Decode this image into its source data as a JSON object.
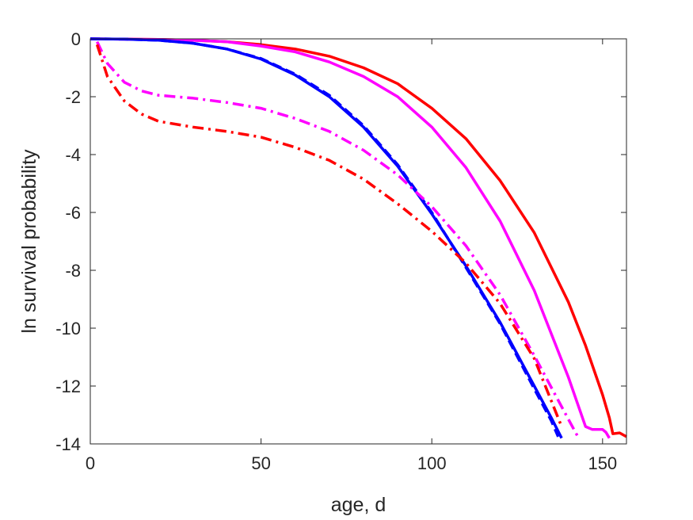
{
  "chart_data": {
    "type": "line",
    "title": "",
    "xlabel": "age, d",
    "ylabel": "ln survival probability",
    "xlim": [
      0,
      157
    ],
    "ylim": [
      -14,
      0
    ],
    "xticks": [
      0,
      50,
      100,
      150
    ],
    "xtick_labels": [
      "0",
      "50",
      "100",
      "150"
    ],
    "yticks": [
      0,
      -2,
      -4,
      -6,
      -8,
      -10,
      -12,
      -14
    ],
    "ytick_labels": [
      "0",
      "-2",
      "-4",
      "-6",
      "-8",
      "-10",
      "-12",
      "-14"
    ],
    "grid": false,
    "legend": "none",
    "series": [
      {
        "color": "#ff0000",
        "style": "solid",
        "x": [
          0,
          10,
          20,
          30,
          40,
          50,
          60,
          70,
          80,
          90,
          100,
          110,
          120,
          130,
          140,
          145,
          150,
          152,
          153,
          155,
          157
        ],
        "y": [
          0,
          -0.01,
          -0.02,
          -0.05,
          -0.1,
          -0.2,
          -0.35,
          -0.6,
          -1.0,
          -1.55,
          -2.4,
          -3.45,
          -4.9,
          -6.7,
          -9.1,
          -10.6,
          -12.3,
          -13.1,
          -13.65,
          -13.62,
          -13.75
        ]
      },
      {
        "color": "#ff00ff",
        "style": "solid",
        "x": [
          0,
          10,
          20,
          30,
          40,
          50,
          60,
          70,
          80,
          90,
          100,
          110,
          120,
          130,
          140,
          145,
          147,
          150,
          151,
          152
        ],
        "y": [
          0,
          -0.01,
          -0.02,
          -0.05,
          -0.1,
          -0.25,
          -0.45,
          -0.8,
          -1.3,
          -2.0,
          -3.05,
          -4.45,
          -6.3,
          -8.7,
          -11.7,
          -13.4,
          -13.5,
          -13.5,
          -13.6,
          -13.8
        ]
      },
      {
        "color": "#0000ff",
        "style": "solid",
        "x": [
          0,
          10,
          20,
          30,
          40,
          50,
          60,
          70,
          80,
          90,
          100,
          110,
          120,
          130,
          135,
          138
        ],
        "y": [
          0,
          -0.01,
          -0.05,
          -0.15,
          -0.35,
          -0.7,
          -1.25,
          -2.0,
          -3.05,
          -4.4,
          -6.05,
          -7.85,
          -9.8,
          -12.0,
          -13.1,
          -13.8
        ]
      },
      {
        "color": "#0000ff",
        "style": "dashed",
        "x": [
          0,
          10,
          20,
          30,
          40,
          50,
          60,
          70,
          80,
          90,
          100,
          110,
          120,
          130,
          135,
          137
        ],
        "y": [
          0,
          -0.01,
          -0.05,
          -0.15,
          -0.35,
          -0.68,
          -1.22,
          -1.95,
          -3.0,
          -4.35,
          -6.0,
          -7.9,
          -9.85,
          -12.1,
          -13.2,
          -13.75
        ]
      },
      {
        "color": "#ff00ff",
        "style": "dashdot",
        "x": [
          2,
          5,
          10,
          15,
          20,
          30,
          40,
          50,
          60,
          70,
          80,
          90,
          100,
          110,
          120,
          130,
          140,
          143
        ],
        "y": [
          -0.1,
          -0.85,
          -1.5,
          -1.8,
          -1.95,
          -2.05,
          -2.2,
          -2.4,
          -2.75,
          -3.2,
          -3.85,
          -4.7,
          -5.8,
          -7.15,
          -8.85,
          -10.95,
          -13.15,
          -13.8
        ]
      },
      {
        "color": "#ff0000",
        "style": "dashdot",
        "x": [
          2,
          5,
          10,
          15,
          20,
          30,
          40,
          50,
          60,
          70,
          80,
          90,
          100,
          110,
          120,
          130,
          138
        ],
        "y": [
          -0.2,
          -1.3,
          -2.15,
          -2.6,
          -2.85,
          -3.05,
          -3.2,
          -3.4,
          -3.75,
          -4.2,
          -4.85,
          -5.7,
          -6.65,
          -7.75,
          -9.15,
          -11.05,
          -13.4
        ]
      }
    ]
  }
}
